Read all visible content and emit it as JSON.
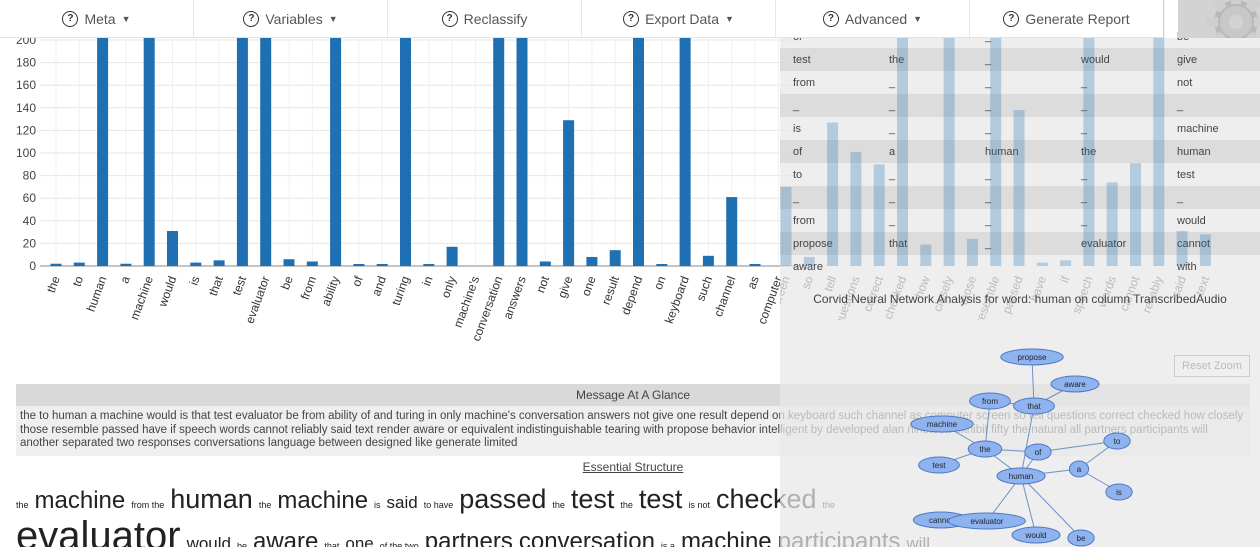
{
  "toolbar": {
    "items": [
      {
        "label": "Meta",
        "caret": true
      },
      {
        "label": "Variables",
        "caret": true
      },
      {
        "label": "Reclassify",
        "caret": false
      },
      {
        "label": "Export Data",
        "caret": true
      },
      {
        "label": "Advanced",
        "caret": true
      },
      {
        "label": "Generate Report",
        "caret": false
      }
    ],
    "help_glyph": "?"
  },
  "chart_data": {
    "type": "bar",
    "categories": [
      "the",
      "to",
      "human",
      "a",
      "machine",
      "would",
      "is",
      "that",
      "test",
      "evaluator",
      "be",
      "from",
      "ability",
      "of",
      "and",
      "turing",
      "in",
      "only",
      "machine's",
      "conversation",
      "answers",
      "not",
      "give",
      "one",
      "result",
      "depend",
      "on",
      "keyboard",
      "such",
      "channel",
      "as",
      "computer"
    ],
    "values": [
      2,
      3,
      210,
      2,
      210,
      31,
      3,
      5,
      210,
      210,
      6,
      4,
      210,
      1,
      1,
      210,
      1,
      17,
      0,
      210,
      210,
      4,
      129,
      8,
      14,
      210,
      1,
      210,
      9,
      61,
      1,
      0
    ],
    "ylim": [
      0,
      200
    ],
    "yticks": [
      0,
      20,
      40,
      60,
      80,
      100,
      120,
      140,
      160,
      180,
      200
    ],
    "grid": true,
    "bar_color": "#1f6fb3"
  },
  "ghost_bars": {
    "labels": [
      "screen",
      "so",
      "tell",
      "questions",
      "correct",
      "checked",
      "how",
      "closely",
      "those",
      "resemble",
      "passed",
      "have",
      "if",
      "speech",
      "words",
      "cannot",
      "reliably",
      "said",
      "text"
    ],
    "values": [
      70,
      8,
      127,
      101,
      90,
      200,
      19,
      200,
      24,
      200,
      138,
      3,
      5,
      200,
      74,
      91,
      200,
      31,
      28
    ]
  },
  "word_table": {
    "rows": [
      [
        "or",
        "",
        "_",
        "",
        "be"
      ],
      [
        "test",
        "the",
        "_",
        "would",
        "give"
      ],
      [
        "from",
        "_",
        "_",
        "_",
        "not"
      ],
      [
        "_",
        "_",
        "_",
        "_",
        "_"
      ],
      [
        "is",
        "_",
        "_",
        "_",
        "machine"
      ],
      [
        "of",
        "a",
        "human",
        "the",
        "human"
      ],
      [
        "to",
        "_",
        "_",
        "_",
        "test"
      ],
      [
        "_",
        "_",
        "_",
        "_",
        "_"
      ],
      [
        "from",
        "_",
        "_",
        "_",
        "would"
      ],
      [
        "propose",
        "that",
        "_",
        "evaluator",
        "cannot"
      ],
      [
        "aware",
        "",
        "",
        "",
        "with"
      ]
    ]
  },
  "network": {
    "title": "Corvid Neural Network Analysis for word: human on column TranscribedAudio",
    "reset_label": "Reset Zoom",
    "nodes": [
      "propose",
      "aware",
      "from",
      "that",
      "machine",
      "the",
      "of",
      "to",
      "test",
      "human",
      "a",
      "is",
      "cannot",
      "evaluator",
      "would",
      "be"
    ]
  },
  "message": {
    "header": "Message At A Glance",
    "text": "the to human a machine would is that test evaluator be from ability of and turing in only machine's conversation answers not give one result depend on keyboard such channel as computer screen so tell questions correct checked how closely those resemble passed have if speech words cannot reliably said text render aware or equivalent indistinguishable tearing with propose behavior intelligent by developed alan nineteen exhibit fifty the natural all partners participants will another separated two responses conversations language between designed like generate limited"
  },
  "essential": {
    "title": "Essential Structure",
    "line1": [
      {
        "w": "the",
        "s": "xs"
      },
      {
        "w": "machine",
        "s": "m"
      },
      {
        "w": "from the",
        "s": "xs"
      },
      {
        "w": "human",
        "s": "l"
      },
      {
        "w": "the",
        "s": "xs"
      },
      {
        "w": "machine",
        "s": "m"
      },
      {
        "w": "is",
        "s": "xs"
      },
      {
        "w": "said",
        "s": "s"
      },
      {
        "w": "to have",
        "s": "xs"
      },
      {
        "w": "passed",
        "s": "l"
      },
      {
        "w": "the",
        "s": "xs"
      },
      {
        "w": "test",
        "s": "l"
      },
      {
        "w": "the",
        "s": "xs"
      },
      {
        "w": "test",
        "s": "l"
      },
      {
        "w": "is not",
        "s": "xs"
      },
      {
        "w": "checked",
        "s": "l"
      },
      {
        "w": "the",
        "s": "xs"
      }
    ],
    "line2": [
      {
        "w": "evaluator",
        "s": "xl"
      },
      {
        "w": "would",
        "s": "s"
      },
      {
        "w": "be",
        "s": "xs"
      },
      {
        "w": "aware",
        "s": "m"
      },
      {
        "w": "that",
        "s": "xs"
      },
      {
        "w": "one",
        "s": "s"
      },
      {
        "w": "of the two",
        "s": "xs"
      },
      {
        "w": "partners",
        "s": "m"
      },
      {
        "w": "conversation",
        "s": "m"
      },
      {
        "w": "is a",
        "s": "xs"
      },
      {
        "w": "machine",
        "s": "m"
      },
      {
        "w": "participants",
        "s": "m"
      },
      {
        "w": "will",
        "s": "s"
      }
    ]
  }
}
